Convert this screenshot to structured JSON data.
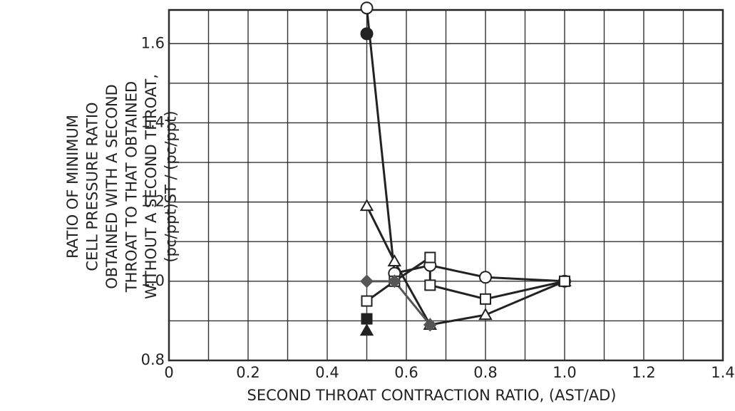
{
  "chart_data": {
    "type": "line",
    "y_label_lines": [
      "RATIO OF MINIMUM",
      "CELL PRESSURE RATIO",
      "OBTAINED WITH A SECOND",
      "THROAT TO THAT OBTAINED",
      "WITHOUT A SECOND THROAT,",
      "(pc/ppt)ST / (pc/ppt)"
    ],
    "x_label": "SECOND THROAT CONTRACTION RATIO, (AST/AD)",
    "xlim": [
      0,
      1.4
    ],
    "ylim": [
      0.8,
      1.685
    ],
    "xticks": [
      0,
      0.2,
      0.4,
      0.6,
      0.8,
      {
        "value": 1,
        "label": "1.0"
      },
      1.2,
      1.4
    ],
    "yticks": [
      0.8,
      {
        "value": 1,
        "label": "1.0"
      },
      1.2,
      1.4,
      1.6
    ],
    "minor_xticks": [
      0.1,
      0.3,
      0.5,
      0.7,
      0.9,
      1.1,
      1.3
    ],
    "minor_yticks": [
      0.9,
      1.1,
      1.3,
      1.5
    ],
    "grid": true,
    "series": [
      {
        "marker": "circle",
        "filled": false,
        "color": "#222",
        "x": [
          0.5,
          0.57,
          0.66,
          0.8,
          1.0
        ],
        "values": [
          1.69,
          1.02,
          1.04,
          1.01,
          1.0
        ]
      },
      {
        "marker": "circle",
        "filled": true,
        "color": "#222",
        "x": [
          0.5
        ],
        "values": [
          1.625
        ]
      },
      {
        "marker": "triangle",
        "filled": false,
        "color": "#222",
        "x": [
          0.5,
          0.57,
          0.66,
          0.8,
          1.0
        ],
        "values": [
          1.19,
          1.05,
          0.89,
          0.915,
          1.0
        ]
      },
      {
        "marker": "triangle",
        "filled": true,
        "color": "#222",
        "x": [
          0.5
        ],
        "values": [
          0.875
        ]
      },
      {
        "marker": "square",
        "filled": false,
        "color": "#222",
        "x": [
          0.5,
          0.57,
          0.66,
          0.66,
          0.8,
          1.0
        ],
        "values": [
          0.95,
          1.0,
          1.06,
          0.99,
          0.955,
          1.0
        ]
      },
      {
        "marker": "square",
        "filled": true,
        "color": "#222",
        "x": [
          0.5
        ],
        "values": [
          0.905
        ]
      },
      {
        "marker": "diamond",
        "filled": true,
        "color": "#555",
        "x": [
          0.5,
          0.57,
          0.66
        ],
        "values": [
          1.0,
          1.0,
          0.89
        ]
      }
    ]
  }
}
